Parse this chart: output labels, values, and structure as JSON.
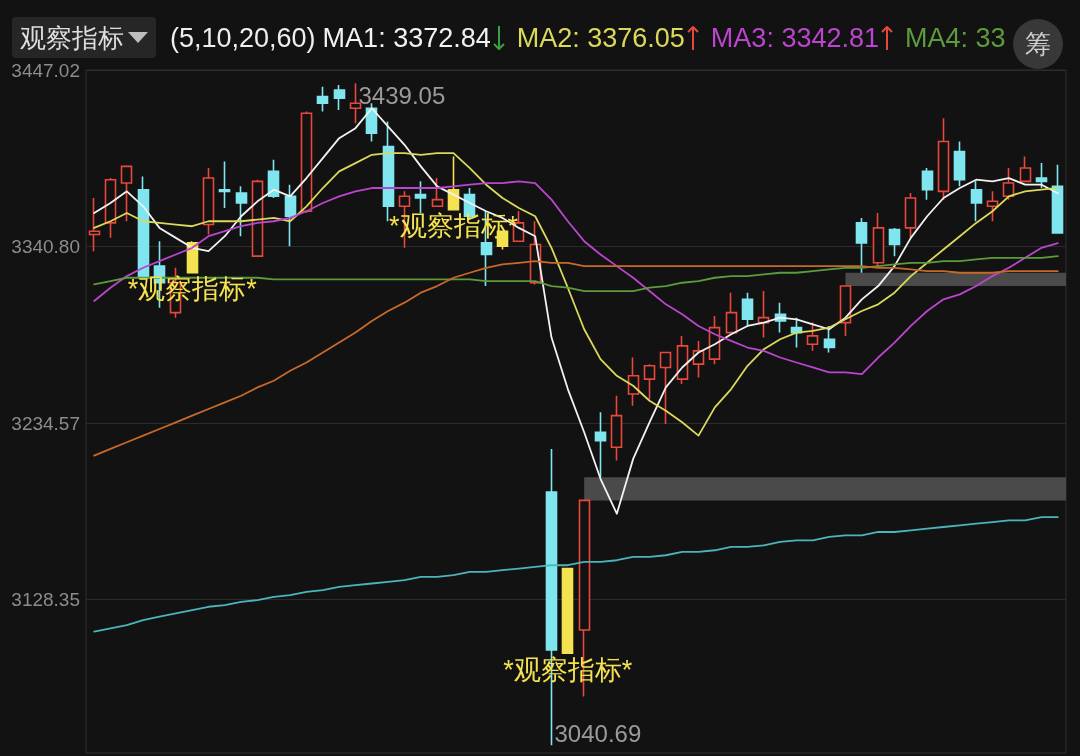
{
  "chart_data": {
    "type": "candlestick",
    "title": "观察指标",
    "legend_title": "(5,10,20,60)",
    "tick_labels": "y",
    "grid": "y",
    "categories": [
      null,
      null,
      null,
      null,
      null,
      null,
      null,
      null,
      null,
      null,
      null,
      null,
      null,
      null,
      null,
      null,
      null,
      null,
      null,
      null,
      null,
      null,
      null,
      null,
      null,
      null,
      null,
      null,
      null,
      null,
      null,
      null,
      null,
      null,
      null,
      null,
      null,
      null,
      null,
      null,
      null,
      null,
      null,
      null,
      null,
      null,
      null,
      null,
      null,
      null,
      null,
      null,
      null,
      null,
      null,
      null,
      null,
      null,
      null,
      null
    ],
    "ohlc": [
      [
        3348,
        3370,
        3338,
        3350
      ],
      [
        3355,
        3382,
        3346,
        3381
      ],
      [
        3379,
        3389,
        3356,
        3389
      ],
      [
        3375,
        3383,
        3322,
        3322
      ],
      [
        3329,
        3344,
        3304,
        3319
      ],
      [
        3301,
        3328,
        3298,
        3319
      ],
      [
        3343,
        3344,
        3325,
        3325
      ],
      [
        3354,
        3388,
        3348,
        3382
      ],
      [
        3375,
        3392,
        3364,
        3374
      ],
      [
        3373,
        3377,
        3347,
        3367
      ],
      [
        3335,
        3381,
        3335,
        3380
      ],
      [
        3386,
        3393,
        3370,
        3371
      ],
      [
        3371,
        3378,
        3341,
        3359
      ],
      [
        3362,
        3422,
        3361,
        3421
      ],
      [
        3431,
        3437,
        3422,
        3427
      ],
      [
        3435,
        3438,
        3423,
        3430
      ],
      [
        3424,
        3439.05,
        3415,
        3427
      ],
      [
        3424,
        3427,
        3404,
        3409
      ],
      [
        3401,
        3416,
        3356,
        3365
      ],
      [
        3365,
        3374,
        3340,
        3371
      ],
      [
        3372,
        3380,
        3361,
        3370
      ],
      [
        3365,
        3382,
        3365,
        3369
      ],
      [
        3375,
        3395,
        3363,
        3363
      ],
      [
        3372,
        3376,
        3357,
        3359
      ],
      [
        3343,
        3362,
        3317,
        3336
      ],
      [
        3350,
        3350,
        3339,
        3341
      ],
      [
        3344,
        3362,
        3344,
        3355
      ],
      [
        3319,
        3356,
        3318,
        3342
      ],
      [
        3193,
        3219,
        3040.69,
        3098
      ],
      [
        3147,
        3147,
        3096,
        3096
      ],
      [
        3110,
        3188,
        3070,
        3188
      ],
      [
        3229,
        3241,
        3202,
        3224
      ],
      [
        3220,
        3251,
        3212,
        3239
      ],
      [
        3252,
        3274,
        3245,
        3263
      ],
      [
        3261,
        3270,
        3249,
        3269
      ],
      [
        3268,
        3277,
        3234,
        3277
      ],
      [
        3261,
        3287,
        3258,
        3281
      ],
      [
        3270,
        3284,
        3262,
        3278
      ],
      [
        3273,
        3299,
        3270,
        3292
      ],
      [
        3289,
        3313,
        3289,
        3301
      ],
      [
        3309,
        3313,
        3293,
        3297
      ],
      [
        3295,
        3314,
        3286,
        3298
      ],
      [
        3300,
        3307,
        3289,
        3296
      ],
      [
        3292,
        3298,
        3280,
        3289
      ],
      [
        3282,
        3295,
        3278,
        3287
      ],
      [
        3285,
        3293,
        3277,
        3280
      ],
      [
        3295,
        3317,
        3287,
        3317
      ],
      [
        3355,
        3358,
        3325,
        3343
      ],
      [
        3331,
        3361,
        3329,
        3352
      ],
      [
        3351,
        3352,
        3335,
        3342
      ],
      [
        3352,
        3373,
        3346,
        3370
      ],
      [
        3386,
        3388,
        3369,
        3375
      ],
      [
        3374,
        3418,
        3369,
        3404
      ],
      [
        3398,
        3404,
        3377,
        3381
      ],
      [
        3375,
        3380,
        3356,
        3367
      ],
      [
        3365,
        3374,
        3356,
        3368
      ],
      [
        3371,
        3388,
        3369,
        3379
      ],
      [
        3380,
        3395,
        3380,
        3388
      ],
      [
        3382,
        3391,
        3376,
        3380
      ],
      [
        3377,
        3390,
        3349,
        3349
      ]
    ],
    "colors": [
      "#e8483c",
      "#e8483c",
      "#e8483c",
      "#7fe6f0",
      "#7fe6f0",
      "#e8483c",
      "#f5e250",
      "#e8483c",
      "#7fe6f0",
      "#7fe6f0",
      "#e8483c",
      "#7fe6f0",
      "#7fe6f0",
      "#e8483c",
      "#7fe6f0",
      "#7fe6f0",
      "#e8483c",
      "#7fe6f0",
      "#7fe6f0",
      "#e8483c",
      "#7fe6f0",
      "#e8483c",
      "#f5e250",
      "#7fe6f0",
      "#7fe6f0",
      "#f5e250",
      "#e8483c",
      "#e8483c",
      "#7fe6f0",
      "#f5e250",
      "#e8483c",
      "#7fe6f0",
      "#e8483c",
      "#e8483c",
      "#e8483c",
      "#e8483c",
      "#e8483c",
      "#e8483c",
      "#e8483c",
      "#e8483c",
      "#7fe6f0",
      "#e8483c",
      "#7fe6f0",
      "#7fe6f0",
      "#e8483c",
      "#7fe6f0",
      "#e8483c",
      "#7fe6f0",
      "#e8483c",
      "#7fe6f0",
      "#e8483c",
      "#7fe6f0",
      "#e8483c",
      "#7fe6f0",
      "#7fe6f0",
      "#e8483c",
      "#e8483c",
      "#e8483c",
      "#7fe6f0",
      "#7fe6f0"
    ],
    "series": [
      {
        "name": "MA1: 3372.84",
        "type": "line",
        "color": "#f2f2f2",
        "values": [
          3361,
          3367,
          3374,
          3365,
          3352,
          3346,
          3340,
          3338,
          3347,
          3359,
          3368,
          3375,
          3371,
          3382,
          3394,
          3406,
          3412,
          3424,
          3413,
          3402,
          3389,
          3377,
          3372,
          3367,
          3362,
          3358,
          3352,
          3347,
          3286,
          3255,
          3229,
          3201,
          3180,
          3213,
          3235,
          3256,
          3268,
          3277,
          3282,
          3288,
          3293,
          3295,
          3298,
          3297,
          3294,
          3291,
          3298,
          3309,
          3317,
          3329,
          3346,
          3359,
          3370,
          3376,
          3381,
          3380,
          3382,
          3378,
          3378,
          3372.84
        ]
      },
      {
        "name": "MA2: 3376.05",
        "type": "line",
        "color": "#dcd85a",
        "values": [
          3352,
          3356,
          3361,
          3356,
          3355,
          3354,
          3353,
          3356,
          3356,
          3356,
          3357,
          3358,
          3356,
          3365,
          3376,
          3386,
          3391,
          3396,
          3397,
          3397,
          3396,
          3397,
          3397,
          3388,
          3378,
          3370,
          3364,
          3359,
          3340,
          3316,
          3291,
          3273,
          3263,
          3257,
          3248,
          3242,
          3235,
          3227,
          3244,
          3255,
          3269,
          3279,
          3285,
          3289,
          3290,
          3292,
          3297,
          3302,
          3306,
          3313,
          3323,
          3331,
          3339,
          3347,
          3355,
          3362,
          3371,
          3374,
          3375,
          3376.05
        ]
      },
      {
        "name": "MA3: 3342.81",
        "type": "line",
        "color": "#bb45cf",
        "values": [
          3308,
          3316,
          3323,
          3328,
          3332,
          3336,
          3340,
          3347,
          3350,
          3353,
          3355,
          3356,
          3358,
          3362,
          3367,
          3371,
          3374,
          3376,
          3376,
          3376,
          3376,
          3376,
          3377,
          3378,
          3379,
          3379,
          3380,
          3379,
          3369,
          3356,
          3344,
          3336,
          3329,
          3322,
          3314,
          3306,
          3300,
          3293,
          3288,
          3284,
          3280,
          3278,
          3274,
          3271,
          3268,
          3265,
          3265,
          3264,
          3274,
          3283,
          3293,
          3302,
          3309,
          3312,
          3317,
          3323,
          3328,
          3334,
          3340,
          3342.81
        ]
      },
      {
        "name": "MA4: 33",
        "type": "line",
        "color": "#5c9c3c",
        "values": [
          3318,
          3320,
          3322,
          3322,
          3322,
          3322,
          3322,
          3322,
          3322,
          3322,
          3322,
          3321,
          3321,
          3321,
          3321,
          3321,
          3321,
          3321,
          3321,
          3321,
          3321,
          3321,
          3321,
          3321,
          3320,
          3320,
          3320,
          3320,
          3317,
          3316,
          3314,
          3314,
          3314,
          3314,
          3316,
          3317,
          3319,
          3320,
          3322,
          3323,
          3323,
          3324,
          3325,
          3325,
          3326,
          3327,
          3328,
          3328,
          3329,
          3330,
          3331,
          3331,
          3332,
          3332,
          3333,
          3334,
          3334,
          3334,
          3334,
          3335
        ]
      },
      {
        "type": "line",
        "color": "#c8692a",
        "values": [
          3215,
          3219,
          3223,
          3227,
          3231,
          3235,
          3239,
          3243,
          3247,
          3251,
          3256,
          3260,
          3266,
          3271,
          3277,
          3283,
          3289,
          3296,
          3302,
          3307,
          3313,
          3317,
          3322,
          3325,
          3328,
          3330,
          3331,
          3332,
          3331,
          3331,
          3329,
          3329,
          3329,
          3329,
          3329,
          3329,
          3329,
          3329,
          3329,
          3329,
          3329,
          3329,
          3329,
          3329,
          3329,
          3329,
          3329,
          3329,
          3328,
          3328,
          3327,
          3326,
          3326,
          3325,
          3325,
          3325,
          3326,
          3326,
          3326,
          3326
        ]
      },
      {
        "type": "line",
        "color": "#4cb4bc",
        "values": [
          3109,
          3111,
          3113,
          3116,
          3118,
          3120,
          3122,
          3124,
          3125,
          3127,
          3128,
          3130,
          3131,
          3133,
          3134,
          3136,
          3137,
          3138,
          3139,
          3140,
          3142,
          3142,
          3143,
          3145,
          3145,
          3146,
          3147,
          3148,
          3149,
          3149,
          3151,
          3151,
          3152,
          3154,
          3154,
          3155,
          3157,
          3157,
          3158,
          3160,
          3160,
          3161,
          3163,
          3164,
          3164,
          3166,
          3167,
          3167,
          3169,
          3169,
          3170,
          3171,
          3172,
          3173,
          3174,
          3175,
          3176,
          3176,
          3178,
          3178
        ]
      }
    ],
    "ylim": [
      3036,
      3447.02
    ],
    "yticks": [
      3128.35,
      3234.57,
      {
        "value": 3340.8,
        "label": "3340.80"
      },
      3447.02
    ],
    "bands": [
      {
        "axis": "y",
        "from": 3188,
        "to": 3202,
        "color": "#4a4a4a"
      },
      {
        "axis": "y",
        "from": 3317,
        "to": 3325,
        "color": "#4a4a4a"
      }
    ],
    "annotations": [
      "筹",
      "3439.05",
      "3040.69",
      {
        "text": "*观察指标*",
        "y": 3325
      },
      {
        "text": "*观察指标*",
        "y": 3363
      },
      {
        "text": "*观察指标*",
        "y": 3096
      }
    ]
  }
}
